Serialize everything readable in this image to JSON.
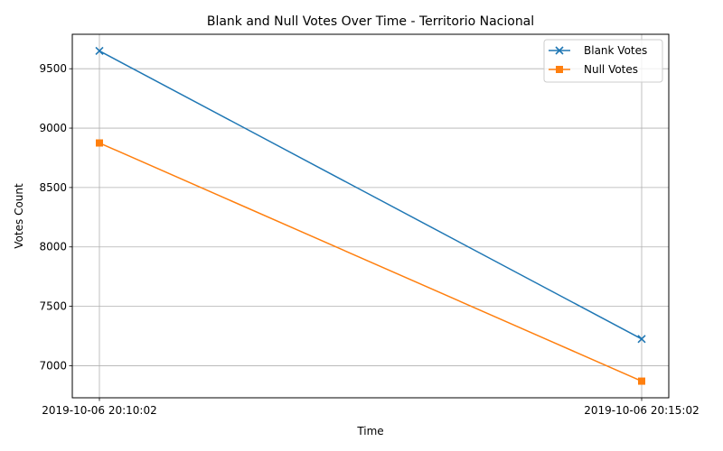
{
  "chart_data": {
    "type": "line",
    "title": "Blank and Null Votes Over Time - Territorio Nacional",
    "xlabel": "Time",
    "ylabel": "Votes Count",
    "categories": [
      "2019-10-06 20:10:02",
      "2019-10-06 20:15:02"
    ],
    "series": [
      {
        "name": "Blank Votes",
        "values": [
          9650,
          7225
        ],
        "color": "#1f77b4",
        "marker": "x"
      },
      {
        "name": "Null Votes",
        "values": [
          8875,
          6870
        ],
        "color": "#ff7f0e",
        "marker": "square"
      }
    ],
    "ylim": [
      6730,
      9790
    ],
    "yticks": [
      7000,
      7500,
      8000,
      8500,
      9000,
      9500
    ],
    "grid": true,
    "legend": "top-right"
  }
}
